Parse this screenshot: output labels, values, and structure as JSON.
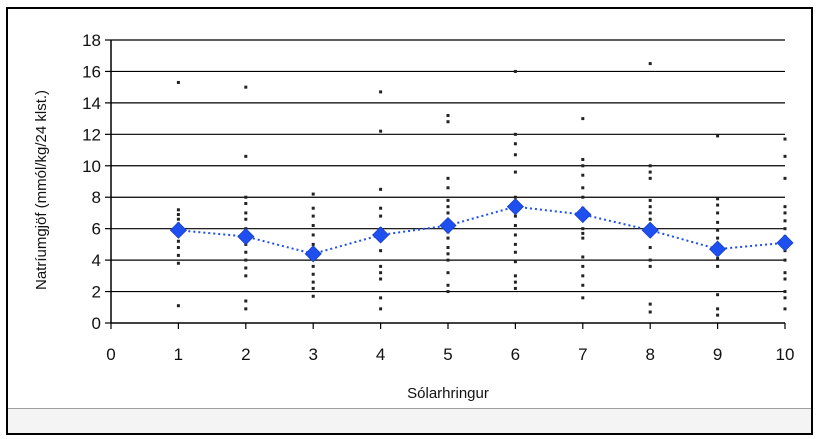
{
  "chart_data": {
    "type": "scatter",
    "title": "",
    "xlabel": "Sólarhringur",
    "ylabel": "Natríumgjöf (mmól/kg/24 klst.)",
    "xlim": [
      0,
      10
    ],
    "ylim": [
      0,
      18
    ],
    "x_ticks": [
      "0",
      "1",
      "2",
      "3",
      "4",
      "5",
      "6",
      "7",
      "8",
      "9",
      "10"
    ],
    "y_ticks": [
      "0",
      "2",
      "4",
      "6",
      "8",
      "10",
      "12",
      "14",
      "16",
      "18"
    ],
    "grid": "horizontal",
    "legend": "none",
    "colors": {
      "individual": "#222222",
      "mean": "#1e4ff0",
      "grid": "#000000"
    },
    "series": [
      {
        "kind": "individual-points",
        "points": [
          [
            1,
            15.3
          ],
          [
            1,
            7.2
          ],
          [
            1,
            6.9
          ],
          [
            1,
            6.6
          ],
          [
            1,
            6.3
          ],
          [
            1,
            6.0
          ],
          [
            1,
            5.6
          ],
          [
            1,
            5.2
          ],
          [
            1,
            4.8
          ],
          [
            1,
            4.3
          ],
          [
            1,
            3.8
          ],
          [
            1,
            1.1
          ],
          [
            2,
            15.0
          ],
          [
            2,
            10.6
          ],
          [
            2,
            8.0
          ],
          [
            2,
            7.6
          ],
          [
            2,
            7.0
          ],
          [
            2,
            6.6
          ],
          [
            2,
            6.0
          ],
          [
            2,
            5.5
          ],
          [
            2,
            5.0
          ],
          [
            2,
            4.5
          ],
          [
            2,
            4.0
          ],
          [
            2,
            3.5
          ],
          [
            2,
            3.0
          ],
          [
            2,
            1.4
          ],
          [
            2,
            0.9
          ],
          [
            3,
            8.2
          ],
          [
            3,
            7.3
          ],
          [
            3,
            6.8
          ],
          [
            3,
            6.2
          ],
          [
            3,
            5.6
          ],
          [
            3,
            5.0
          ],
          [
            3,
            4.6
          ],
          [
            3,
            4.2
          ],
          [
            3,
            3.6
          ],
          [
            3,
            3.1
          ],
          [
            3,
            2.6
          ],
          [
            3,
            2.2
          ],
          [
            3,
            1.7
          ],
          [
            4,
            14.7
          ],
          [
            4,
            12.2
          ],
          [
            4,
            8.5
          ],
          [
            4,
            7.3
          ],
          [
            4,
            6.8
          ],
          [
            4,
            6.0
          ],
          [
            4,
            5.3
          ],
          [
            4,
            4.6
          ],
          [
            4,
            3.6
          ],
          [
            4,
            3.2
          ],
          [
            4,
            2.8
          ],
          [
            4,
            1.6
          ],
          [
            4,
            0.9
          ],
          [
            5,
            13.2
          ],
          [
            5,
            12.8
          ],
          [
            5,
            9.2
          ],
          [
            5,
            8.6
          ],
          [
            5,
            7.8
          ],
          [
            5,
            7.4
          ],
          [
            5,
            7.0
          ],
          [
            5,
            6.4
          ],
          [
            5,
            5.8
          ],
          [
            5,
            5.4
          ],
          [
            5,
            4.8
          ],
          [
            5,
            4.4
          ],
          [
            5,
            4.0
          ],
          [
            5,
            3.2
          ],
          [
            5,
            2.4
          ],
          [
            5,
            2.0
          ],
          [
            6,
            16.0
          ],
          [
            6,
            12.0
          ],
          [
            6,
            11.4
          ],
          [
            6,
            10.7
          ],
          [
            6,
            9.6
          ],
          [
            6,
            8.0
          ],
          [
            6,
            7.4
          ],
          [
            6,
            6.8
          ],
          [
            6,
            6.2
          ],
          [
            6,
            5.6
          ],
          [
            6,
            5.0
          ],
          [
            6,
            4.5
          ],
          [
            6,
            3.9
          ],
          [
            6,
            3.0
          ],
          [
            6,
            2.6
          ],
          [
            6,
            2.2
          ],
          [
            7,
            13.0
          ],
          [
            7,
            10.4
          ],
          [
            7,
            10.0
          ],
          [
            7,
            9.4
          ],
          [
            7,
            8.6
          ],
          [
            7,
            8.0
          ],
          [
            7,
            7.3
          ],
          [
            7,
            6.6
          ],
          [
            7,
            6.0
          ],
          [
            7,
            5.7
          ],
          [
            7,
            5.4
          ],
          [
            7,
            4.2
          ],
          [
            7,
            3.6
          ],
          [
            7,
            3.0
          ],
          [
            7,
            2.4
          ],
          [
            7,
            1.6
          ],
          [
            8,
            16.5
          ],
          [
            8,
            10.0
          ],
          [
            8,
            9.6
          ],
          [
            8,
            9.2
          ],
          [
            8,
            7.8
          ],
          [
            8,
            7.4
          ],
          [
            8,
            7.0
          ],
          [
            8,
            6.6
          ],
          [
            8,
            6.2
          ],
          [
            8,
            5.6
          ],
          [
            8,
            4.8
          ],
          [
            8,
            4.0
          ],
          [
            8,
            3.6
          ],
          [
            8,
            1.2
          ],
          [
            8,
            0.7
          ],
          [
            9,
            11.9
          ],
          [
            9,
            7.9
          ],
          [
            9,
            7.5
          ],
          [
            9,
            7.0
          ],
          [
            9,
            6.4
          ],
          [
            9,
            5.9
          ],
          [
            9,
            5.4
          ],
          [
            9,
            5.0
          ],
          [
            9,
            4.6
          ],
          [
            9,
            4.1
          ],
          [
            9,
            3.6
          ],
          [
            9,
            1.8
          ],
          [
            9,
            0.9
          ],
          [
            9,
            0.5
          ],
          [
            10,
            11.7
          ],
          [
            10,
            10.6
          ],
          [
            10,
            9.2
          ],
          [
            10,
            7.4
          ],
          [
            10,
            7.0
          ],
          [
            10,
            6.5
          ],
          [
            10,
            6.0
          ],
          [
            10,
            5.5
          ],
          [
            10,
            5.0
          ],
          [
            10,
            4.6
          ],
          [
            10,
            4.0
          ],
          [
            10,
            3.2
          ],
          [
            10,
            2.8
          ],
          [
            10,
            2.0
          ],
          [
            10,
            1.6
          ],
          [
            10,
            0.9
          ]
        ]
      },
      {
        "kind": "mean-line",
        "x": [
          1,
          2,
          3,
          4,
          5,
          6,
          7,
          8,
          9,
          10
        ],
        "y": [
          5.9,
          5.5,
          4.4,
          5.6,
          6.2,
          7.4,
          6.9,
          5.9,
          4.7,
          5.1
        ]
      }
    ]
  }
}
